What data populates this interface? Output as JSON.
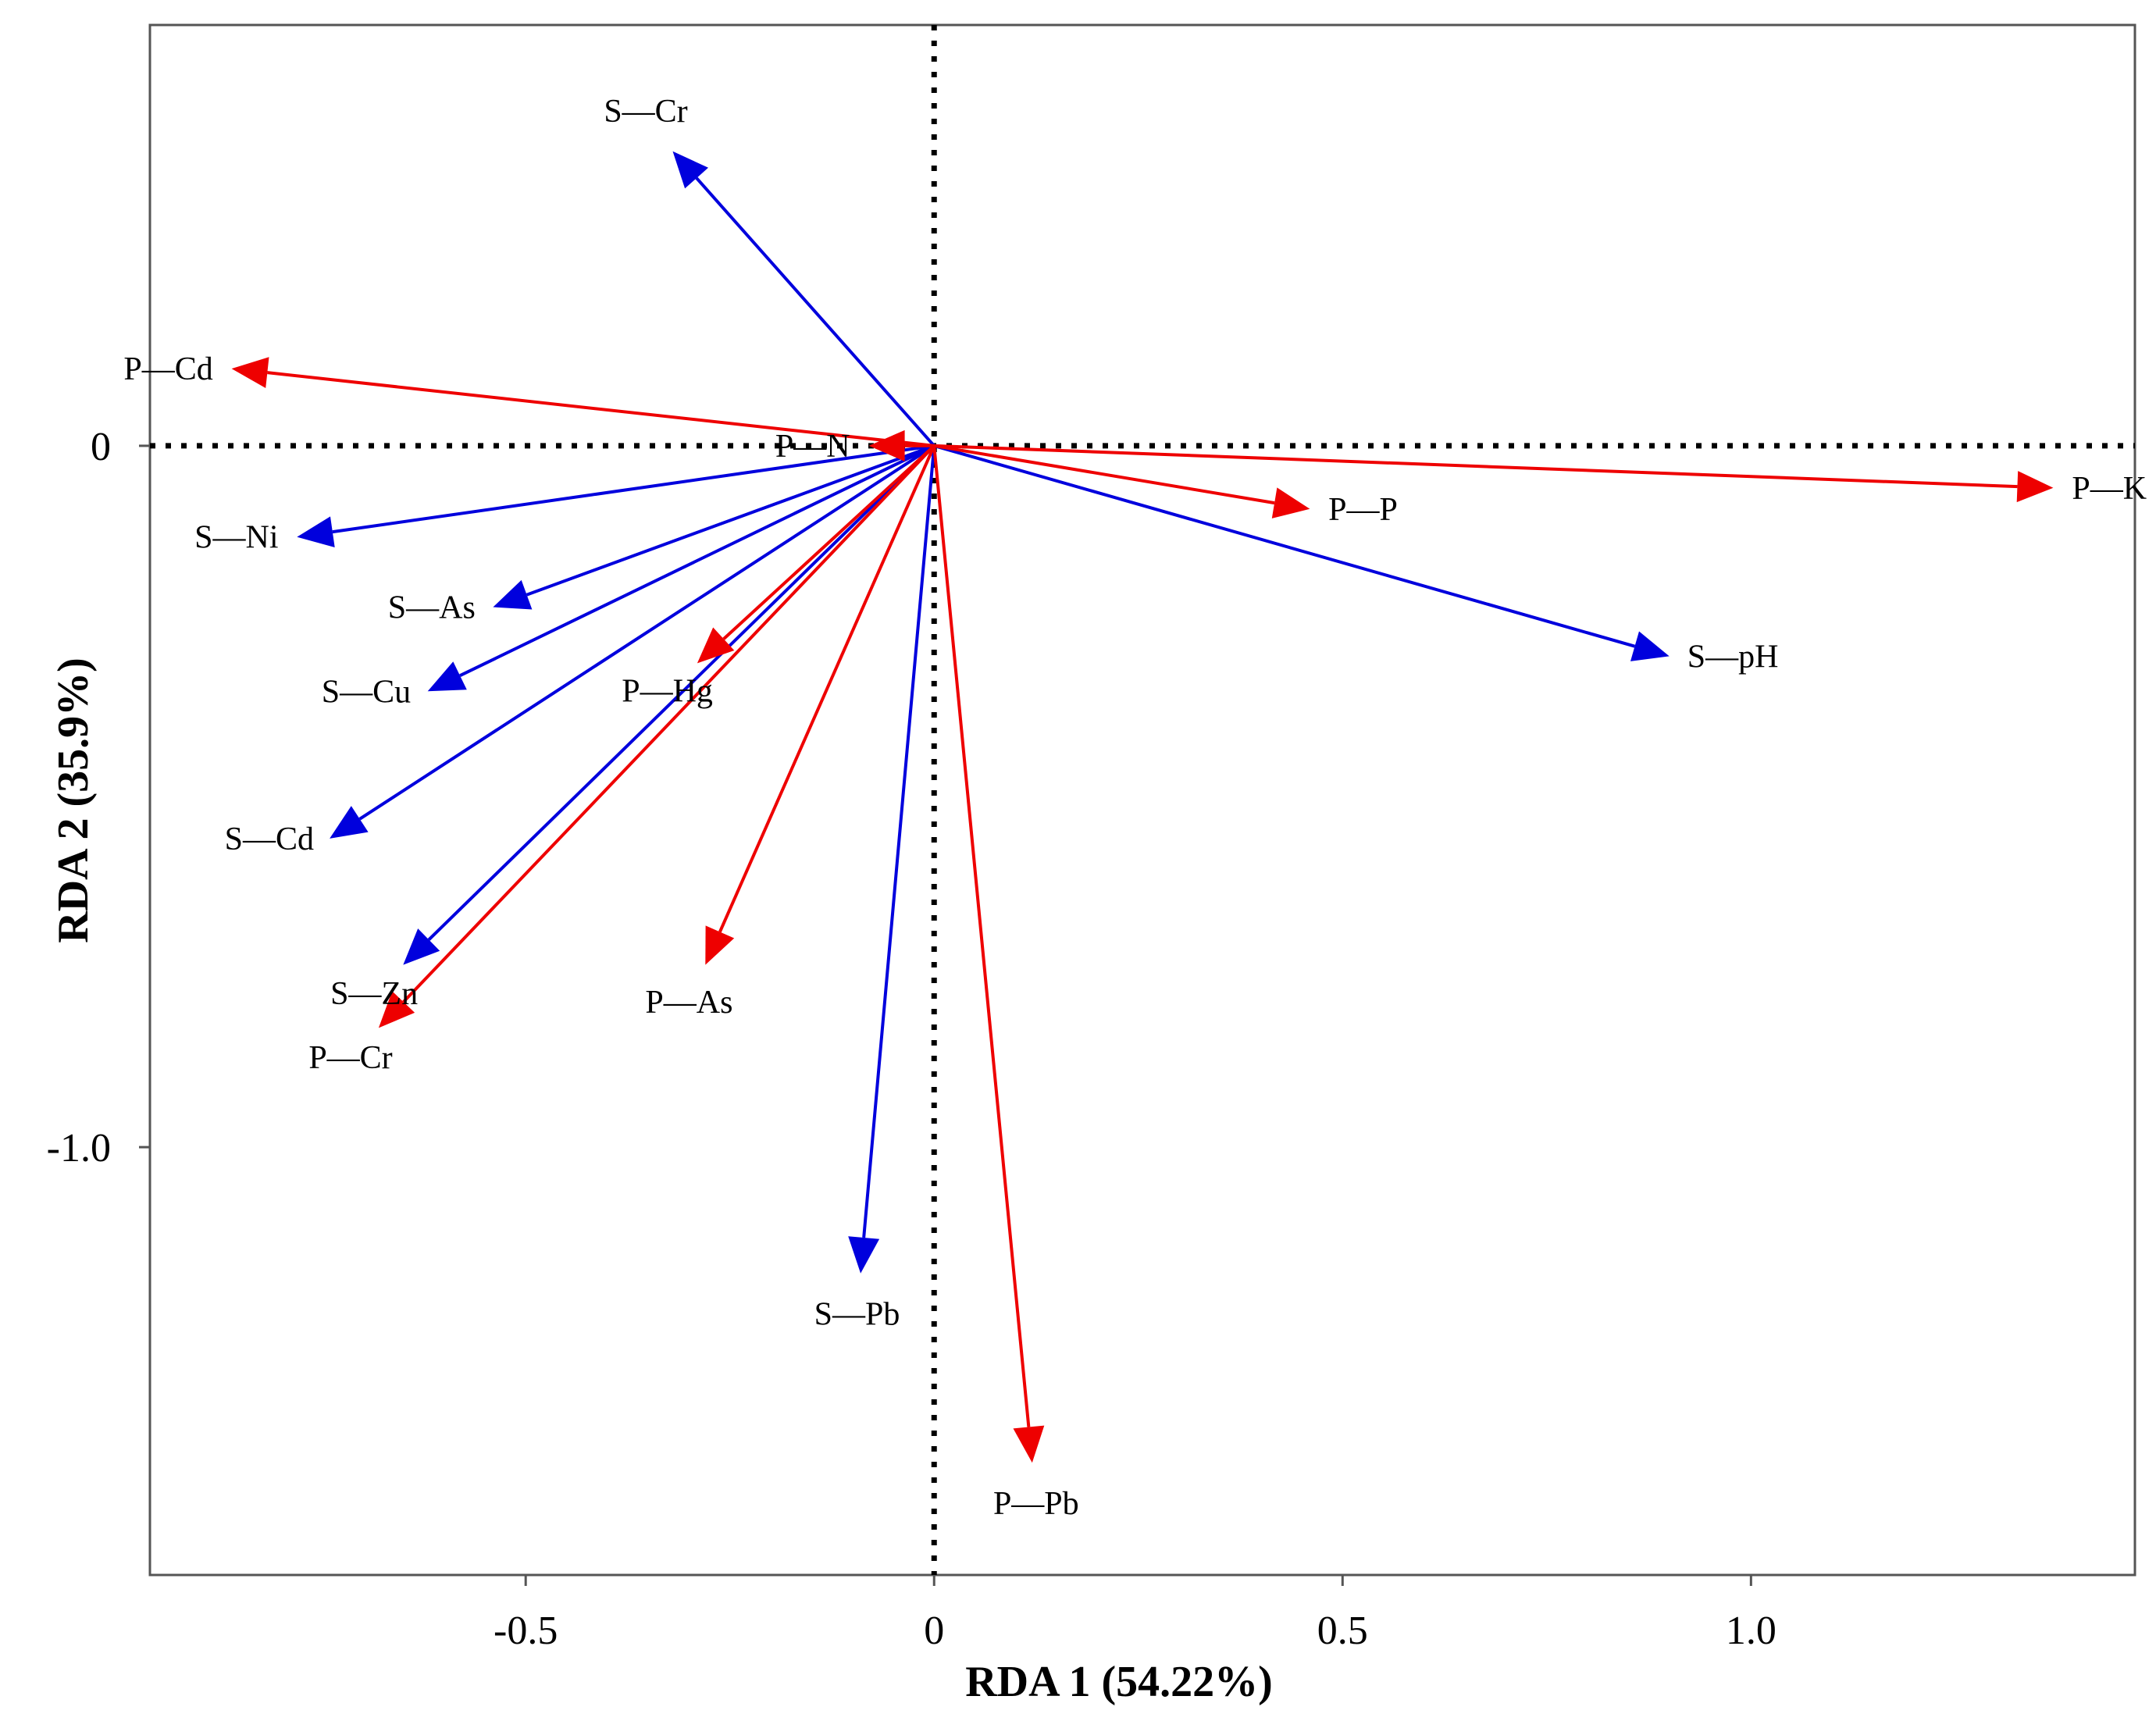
{
  "chart_data": {
    "type": "biplot",
    "title": "",
    "xlabel": "RDA 1 (54.22%)",
    "ylabel": "RDA 2 (35.9%)",
    "xlim": [
      -0.96,
      1.47
    ],
    "ylim": [
      -1.61,
      0.6
    ],
    "xticks": [
      -0.5,
      0,
      0.5,
      1.0
    ],
    "xtick_labels": [
      "-0.5",
      "0",
      "0.5",
      "1.0"
    ],
    "yticks": [
      0,
      -1.0
    ],
    "ytick_labels": [
      "0",
      "-1.0"
    ],
    "reference_lines": {
      "x": 0,
      "y": 0,
      "style": "dotted"
    },
    "colors": {
      "S": "#0000dd",
      "P": "#ee0000"
    },
    "series": [
      {
        "name": "S",
        "color": "#0000dd",
        "vectors": [
          {
            "label": "S—Cr",
            "x": -0.32,
            "y": 0.42
          },
          {
            "label": "S—Ni",
            "x": -0.78,
            "y": -0.13
          },
          {
            "label": "S—As",
            "x": -0.54,
            "y": -0.23
          },
          {
            "label": "S—Cu",
            "x": -0.62,
            "y": -0.35
          },
          {
            "label": "S—Cd",
            "x": -0.74,
            "y": -0.56
          },
          {
            "label": "S—Zn",
            "x": -0.65,
            "y": -0.74
          },
          {
            "label": "S—Pb",
            "x": -0.09,
            "y": -1.18
          },
          {
            "label": "S—pH",
            "x": 0.9,
            "y": -0.3
          }
        ]
      },
      {
        "name": "P",
        "color": "#ee0000",
        "vectors": [
          {
            "label": "P—Cd",
            "x": -0.86,
            "y": 0.11
          },
          {
            "label": "P—N",
            "x": -0.08,
            "y": 0.0
          },
          {
            "label": "P—P",
            "x": 0.46,
            "y": -0.09
          },
          {
            "label": "P—K",
            "x": 1.37,
            "y": -0.06
          },
          {
            "label": "P—Hg",
            "x": -0.29,
            "y": -0.31
          },
          {
            "label": "P—As",
            "x": -0.28,
            "y": -0.74
          },
          {
            "label": "P—Cr",
            "x": -0.68,
            "y": -0.83
          },
          {
            "label": "P—Pb",
            "x": 0.12,
            "y": -1.45
          }
        ]
      }
    ]
  }
}
